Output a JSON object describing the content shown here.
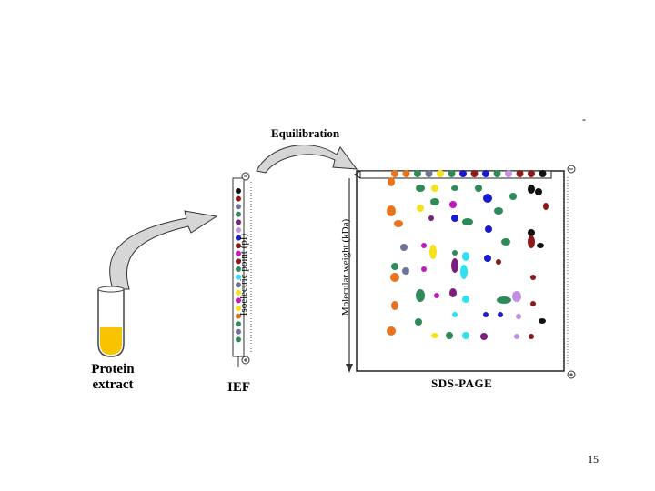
{
  "labels": {
    "protein_extract_line1": "Protein",
    "protein_extract_line2": "extract",
    "ief": "IEF",
    "sds_page": "SDS-PAGE",
    "equilibration": "Equilibration",
    "isoelectric_axis": "Isoelectric point (pI)",
    "mw_axis": "Molecular weight (kDa)",
    "corner_dash": "-",
    "page_number": "15"
  },
  "colors": {
    "extract": "#f8c400",
    "arrow_fill": "#d6d6d6",
    "arrow_stroke": "#333333",
    "orange": "#e8731c",
    "green": "#2e8b57",
    "blue": "#1a1acc",
    "magenta": "#c218c2",
    "yellow": "#f5e21a",
    "cyan": "#2ee0f0",
    "purple": "#7a1f7a",
    "maroon": "#8b1a1a",
    "black": "#111111",
    "slate": "#6e7399",
    "lavender": "#c290e0"
  },
  "icons": {
    "tube": "test-tube-icon",
    "strip": "ief-strip-icon",
    "arrow": "curved-arrow-icon",
    "minus": "minus-circle-icon",
    "plus": "plus-circle-icon"
  }
}
